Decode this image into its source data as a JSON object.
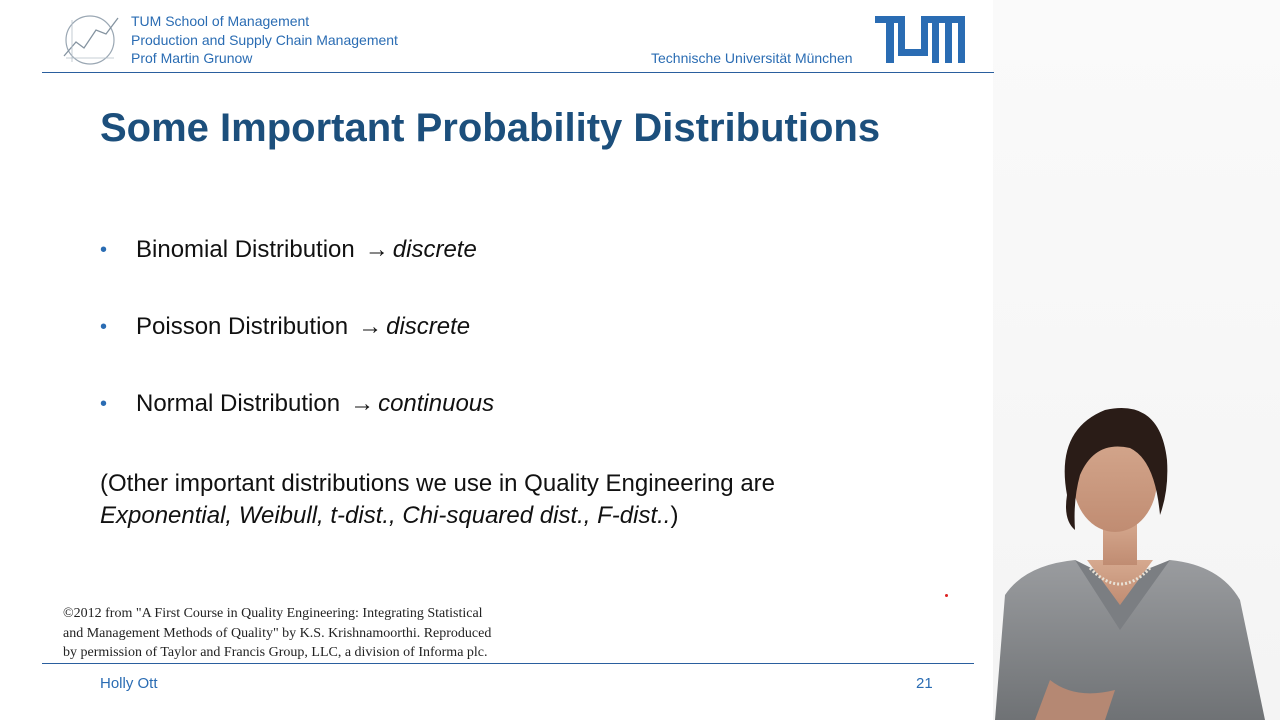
{
  "header": {
    "affiliation_lines": [
      "TUM School of Management",
      "Production and Supply Chain Management",
      "Prof Martin Grunow"
    ],
    "university": "Technische Universität München"
  },
  "slide": {
    "title": "Some Important Probability Distributions",
    "bullets": [
      {
        "name": "Binomial Distribution",
        "arrow": "→",
        "type": "discrete"
      },
      {
        "name": "Poisson Distribution",
        "arrow": "→",
        "type": "discrete"
      },
      {
        "name": "Normal Distribution",
        "arrow": "→",
        "type": "continuous"
      }
    ],
    "other_line1": "(Other important distributions we use in Quality Engineering are",
    "other_line2_italic": "Exponential, Weibull, t-dist., Chi-squared dist., F-dist..",
    "other_line2_close": ")",
    "copyright_lines": [
      "©2012 from \"A First Course in Quality Engineering: Integrating Statistical",
      "and Management Methods of Quality\" by K.S. Krishnamoorthi. Reproduced",
      "by permission of Taylor and Francis Group, LLC, a division of Informa plc."
    ]
  },
  "footer": {
    "presenter_name": "Holly Ott",
    "page_number": "21"
  },
  "colors": {
    "brand_blue": "#2a6cb3",
    "title_blue": "#1c4f7c"
  }
}
